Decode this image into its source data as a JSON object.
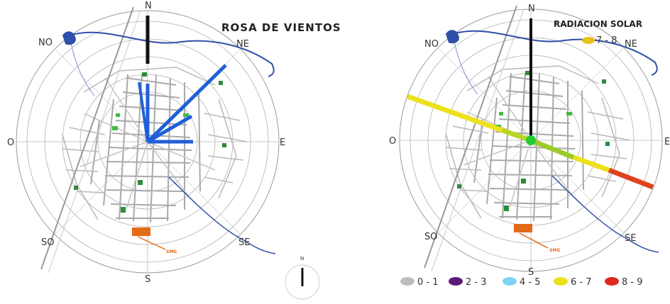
{
  "colors": {
    "ring": "#9a9a9a",
    "street": "#a9a9a9",
    "river": "#2f4fa8",
    "wind_ray": "#1f5fd8",
    "north_ray": "#111111",
    "park": "#2e8b3a",
    "marker_orange": "#e36a16",
    "center_green": "#22cc33"
  },
  "wind_map": {
    "title": "ROSA DE VIENTOS",
    "labels": {
      "n": "N",
      "ne": "NE",
      "e": "E",
      "se": "SE",
      "s": "S",
      "so": "SO",
      "o": "O",
      "no": "NO"
    },
    "small_tag": "SMG",
    "compass_label": "N"
  },
  "solar_map": {
    "title": "RADIACION SOLAR",
    "labels": {
      "n": "N",
      "ne": "NE",
      "e": "E",
      "se": "SE",
      "s": "S",
      "so": "SO",
      "o": "O",
      "no": "NO"
    },
    "small_tag": "SMG",
    "header_legend": {
      "label": "7 - 8",
      "color": "#e8c21a"
    },
    "legend": [
      {
        "label": "0 - 1",
        "color": "#bdbdbd"
      },
      {
        "label": "2 - 3",
        "color": "#5a1a7a"
      },
      {
        "label": "4 - 5",
        "color": "#7fd3f0"
      },
      {
        "label": "6 - 7",
        "color": "#ece11a"
      },
      {
        "label": "8 - 9",
        "color": "#e0261e"
      }
    ]
  }
}
